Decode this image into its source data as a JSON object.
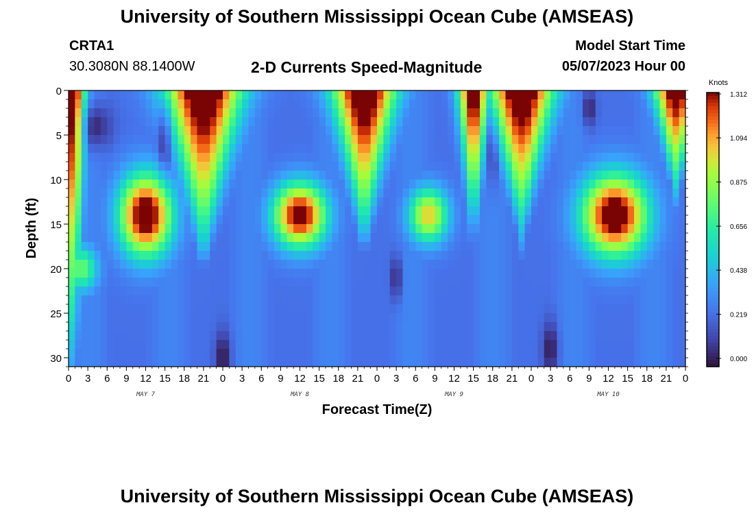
{
  "header": {
    "title": "University of Southern Mississippi Ocean Cube (AMSEAS)",
    "station_id": "CRTA1",
    "station_coords": "30.3080N  88.1400W",
    "product": "2-D Currents Speed-Magnitude",
    "start_label": "Model Start Time",
    "start_value": "05/07/2023 Hour 00"
  },
  "footer": {
    "title": "University of Southern Mississippi Ocean Cube (AMSEAS)"
  },
  "chart_data": {
    "type": "heatmap",
    "title": "2-D Currents Speed-Magnitude",
    "xlabel": "Forecast Time(Z)",
    "ylabel": "Depth (ft)",
    "xlim": [
      0,
      96
    ],
    "ylim": [
      0,
      31
    ],
    "x_ticks": [
      0,
      3,
      6,
      9,
      12,
      15,
      18,
      21,
      24,
      27,
      30,
      33,
      36,
      39,
      42,
      45,
      48,
      51,
      54,
      57,
      60,
      63,
      66,
      69,
      72,
      75,
      78,
      81,
      84,
      87,
      90,
      93,
      96
    ],
    "x_tick_labels": [
      "0",
      "3",
      "6",
      "9",
      "12",
      "15",
      "18",
      "21",
      "0",
      "3",
      "6",
      "9",
      "12",
      "15",
      "18",
      "21",
      "0",
      "3",
      "6",
      "9",
      "12",
      "15",
      "18",
      "21",
      "0",
      "3",
      "6",
      "9",
      "12",
      "15",
      "18",
      "21",
      "0"
    ],
    "y_ticks": [
      0,
      5,
      10,
      15,
      20,
      25,
      30
    ],
    "y_tick_labels": [
      "0",
      "5",
      "10",
      "15",
      "20",
      "25",
      "30"
    ],
    "day_labels": [
      {
        "text": "MAY 7",
        "hour": 12
      },
      {
        "text": "MAY 8",
        "hour": 36
      },
      {
        "text": "MAY 9",
        "hour": 60
      },
      {
        "text": "MAY 10",
        "hour": 84
      }
    ],
    "colorbar": {
      "unit": "Knots",
      "min": 0.0,
      "max": 1.312,
      "ticks": [
        0.0,
        0.219,
        0.438,
        0.656,
        0.875,
        1.094,
        1.312
      ],
      "tick_labels": [
        "0.000",
        "0.219",
        "0.438",
        "0.656",
        "0.875",
        "1.094",
        "1.312"
      ]
    },
    "surface_peaks": [
      {
        "hour": 0.5,
        "width": 1.2,
        "depth": 31,
        "max": 1.25
      },
      {
        "hour": 21,
        "width": 5,
        "depth": 18,
        "max": 1.33
      },
      {
        "hour": 46,
        "width": 4,
        "depth": 16,
        "max": 1.33
      },
      {
        "hour": 63,
        "width": 1.5,
        "depth": 14,
        "max": 1.25
      },
      {
        "hour": 70.5,
        "width": 4,
        "depth": 15,
        "max": 1.33
      },
      {
        "hour": 94.5,
        "width": 2.5,
        "depth": 10,
        "max": 1.25
      }
    ],
    "subsurface_blobs": [
      {
        "hour": 12,
        "depth": 14,
        "hour_spread": 4,
        "depth_spread": 4.5,
        "max": 1.2
      },
      {
        "hour": 2,
        "depth": 20,
        "hour_spread": 2.5,
        "depth_spread": 2.5,
        "max": 0.55
      },
      {
        "hour": 36,
        "depth": 14,
        "hour_spread": 4,
        "depth_spread": 3.5,
        "max": 1.15
      },
      {
        "hour": 56,
        "depth": 14,
        "hour_spread": 3,
        "depth_spread": 3,
        "max": 0.8
      },
      {
        "hour": 85,
        "depth": 14,
        "hour_spread": 5,
        "depth_spread": 4.5,
        "max": 1.2
      }
    ],
    "minima": [
      {
        "hour": 4,
        "depth": 4,
        "hour_spread": 2.5,
        "depth_spread": 2.5
      },
      {
        "hour": 15,
        "depth": 5,
        "hour_spread": 1,
        "depth_spread": 4
      },
      {
        "hour": 24,
        "depth": 30,
        "hour_spread": 1.2,
        "depth_spread": 3
      },
      {
        "hour": 51,
        "depth": 21,
        "hour_spread": 0.8,
        "depth_spread": 2.5
      },
      {
        "hour": 66,
        "depth": 7,
        "hour_spread": 0.6,
        "depth_spread": 4
      },
      {
        "hour": 75,
        "depth": 29,
        "hour_spread": 1.2,
        "depth_spread": 3
      },
      {
        "hour": 81,
        "depth": 2,
        "hour_spread": 1,
        "depth_spread": 2
      }
    ]
  }
}
